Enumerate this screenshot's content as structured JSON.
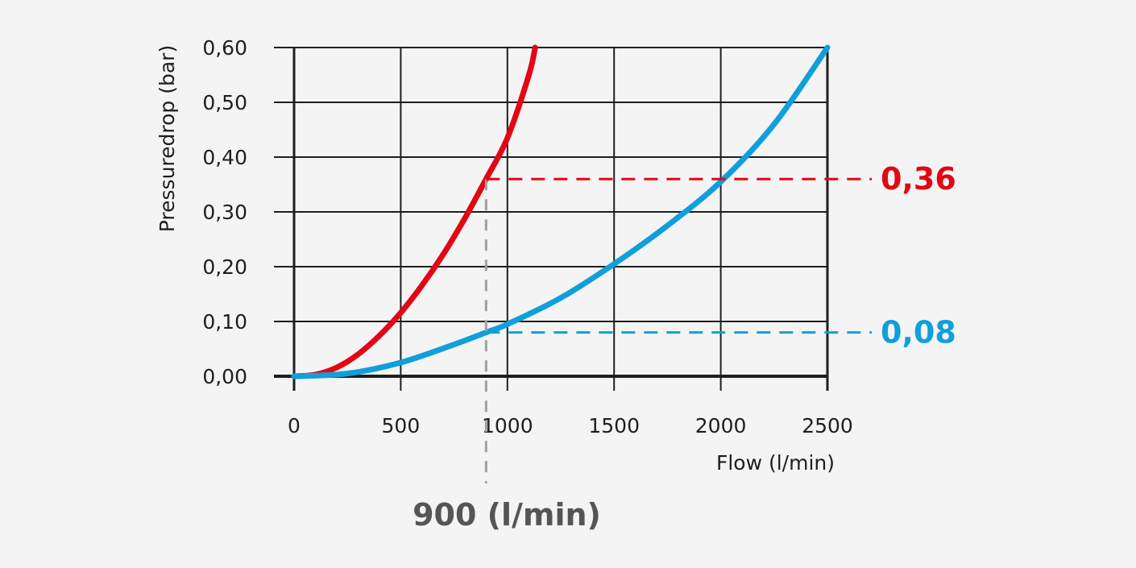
{
  "chart_data": {
    "type": "line",
    "xlabel": "Flow (l/min)",
    "ylabel": "Pressuredrop (bar)",
    "xlim": [
      0,
      2500
    ],
    "ylim": [
      0,
      0.6
    ],
    "x_ticks": [
      0,
      500,
      1000,
      1500,
      2000,
      2500
    ],
    "x_tick_labels": [
      "0",
      "500",
      "1000",
      "1500",
      "2000",
      "2500"
    ],
    "y_ticks": [
      0,
      0.1,
      0.2,
      0.3,
      0.4,
      0.5,
      0.6
    ],
    "y_tick_labels": [
      "0,00",
      "0,10",
      "0,20",
      "0,30",
      "0,40",
      "0,50",
      "0,60"
    ],
    "grid": true,
    "series": [
      {
        "color": "#e30613",
        "x": [
          0,
          100,
          200,
          300,
          400,
          500,
          600,
          700,
          800,
          900,
          1000,
          1100,
          1130
        ],
        "y": [
          0,
          0.003,
          0.016,
          0.04,
          0.074,
          0.116,
          0.166,
          0.223,
          0.288,
          0.36,
          0.435,
          0.549,
          0.6
        ]
      },
      {
        "color": "#0f9fdc",
        "x": [
          0,
          250,
          500,
          750,
          900,
          1000,
          1250,
          1500,
          1750,
          2000,
          2250,
          2500
        ],
        "y": [
          0,
          0.005,
          0.025,
          0.058,
          0.08,
          0.095,
          0.143,
          0.205,
          0.275,
          0.355,
          0.46,
          0.6
        ]
      }
    ],
    "annotations": {
      "x_marker": {
        "value": 900,
        "label": "900 (l/min)",
        "color": "#a0a0a0"
      },
      "y_markers": [
        {
          "value": 0.36,
          "label": "0,36",
          "color": "#e30613"
        },
        {
          "value": 0.08,
          "label": "0,08",
          "color": "#0f9fdc"
        }
      ]
    }
  }
}
